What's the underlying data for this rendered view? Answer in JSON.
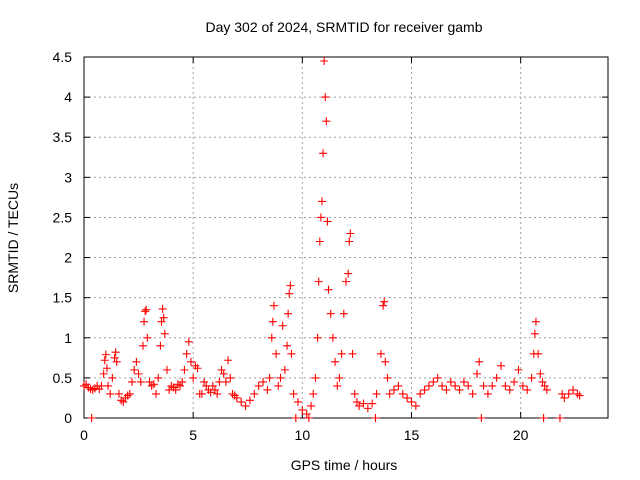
{
  "chart_data": {
    "type": "scatter",
    "title": "Day 302 of 2024, SRMTID for receiver gamb",
    "xlabel": "GPS time / hours",
    "ylabel": "SRMTID / TECUs",
    "xlim": [
      0,
      24
    ],
    "ylim": [
      0,
      4.5
    ],
    "x_ticks": [
      0,
      5,
      10,
      15,
      20
    ],
    "x_tick_labels": [
      "0",
      "5",
      "10",
      "15",
      "20"
    ],
    "y_ticks": [
      0,
      0.5,
      1,
      1.5,
      2,
      2.5,
      3,
      3.5,
      4,
      4.5
    ],
    "y_tick_labels": [
      "0",
      "0.5",
      "1",
      "1.5",
      "2",
      "2.5",
      "3",
      "3.5",
      "4",
      "4.5"
    ],
    "grid": true,
    "marker": "+",
    "color": "#ff0000",
    "series": [
      {
        "name": "SRMTID",
        "points": [
          [
            0.0,
            0.4
          ],
          [
            0.1,
            0.42
          ],
          [
            0.2,
            0.38
          ],
          [
            0.3,
            0.36
          ],
          [
            0.35,
            0.0
          ],
          [
            0.4,
            0.35
          ],
          [
            0.5,
            0.37
          ],
          [
            0.6,
            0.4
          ],
          [
            0.7,
            0.36
          ],
          [
            0.8,
            0.4
          ],
          [
            0.9,
            0.55
          ],
          [
            0.95,
            0.72
          ],
          [
            1.0,
            0.79
          ],
          [
            1.05,
            0.62
          ],
          [
            1.1,
            0.4
          ],
          [
            1.2,
            0.3
          ],
          [
            1.3,
            0.5
          ],
          [
            1.4,
            0.75
          ],
          [
            1.45,
            0.82
          ],
          [
            1.5,
            0.7
          ],
          [
            1.6,
            0.3
          ],
          [
            1.7,
            0.22
          ],
          [
            1.8,
            0.2
          ],
          [
            1.9,
            0.25
          ],
          [
            2.0,
            0.28
          ],
          [
            2.1,
            0.3
          ],
          [
            2.2,
            0.45
          ],
          [
            2.3,
            0.6
          ],
          [
            2.4,
            0.7
          ],
          [
            2.5,
            0.55
          ],
          [
            2.6,
            0.45
          ],
          [
            2.7,
            0.9
          ],
          [
            2.75,
            1.2
          ],
          [
            2.8,
            1.33
          ],
          [
            2.85,
            1.35
          ],
          [
            2.9,
            1.0
          ],
          [
            3.0,
            0.45
          ],
          [
            3.1,
            0.4
          ],
          [
            3.2,
            0.42
          ],
          [
            3.3,
            0.3
          ],
          [
            3.4,
            0.5
          ],
          [
            3.5,
            0.9
          ],
          [
            3.55,
            1.2
          ],
          [
            3.6,
            1.36
          ],
          [
            3.65,
            1.25
          ],
          [
            3.7,
            1.05
          ],
          [
            3.8,
            0.6
          ],
          [
            3.9,
            0.35
          ],
          [
            4.0,
            0.4
          ],
          [
            4.1,
            0.38
          ],
          [
            4.2,
            0.35
          ],
          [
            4.3,
            0.42
          ],
          [
            4.4,
            0.4
          ],
          [
            4.5,
            0.45
          ],
          [
            4.6,
            0.6
          ],
          [
            4.7,
            0.8
          ],
          [
            4.8,
            0.95
          ],
          [
            4.9,
            0.7
          ],
          [
            5.0,
            0.5
          ],
          [
            5.1,
            0.65
          ],
          [
            5.2,
            0.62
          ],
          [
            5.3,
            0.3
          ],
          [
            5.4,
            0.3
          ],
          [
            5.5,
            0.45
          ],
          [
            5.6,
            0.4
          ],
          [
            5.7,
            0.35
          ],
          [
            5.8,
            0.32
          ],
          [
            5.9,
            0.4
          ],
          [
            6.0,
            0.35
          ],
          [
            6.1,
            0.3
          ],
          [
            6.2,
            0.45
          ],
          [
            6.3,
            0.6
          ],
          [
            6.4,
            0.55
          ],
          [
            6.5,
            0.45
          ],
          [
            6.6,
            0.72
          ],
          [
            6.7,
            0.5
          ],
          [
            6.8,
            0.3
          ],
          [
            6.9,
            0.28
          ],
          [
            7.0,
            0.25
          ],
          [
            7.2,
            0.2
          ],
          [
            7.4,
            0.15
          ],
          [
            7.6,
            0.22
          ],
          [
            7.8,
            0.3
          ],
          [
            8.0,
            0.4
          ],
          [
            8.2,
            0.45
          ],
          [
            8.4,
            0.35
          ],
          [
            8.5,
            0.5
          ],
          [
            8.6,
            1.0
          ],
          [
            8.65,
            1.2
          ],
          [
            8.7,
            1.4
          ],
          [
            8.8,
            0.8
          ],
          [
            8.9,
            0.4
          ],
          [
            9.0,
            0.5
          ],
          [
            9.1,
            1.15
          ],
          [
            9.2,
            0.6
          ],
          [
            9.3,
            0.9
          ],
          [
            9.35,
            1.3
          ],
          [
            9.4,
            1.55
          ],
          [
            9.45,
            1.65
          ],
          [
            9.5,
            0.8
          ],
          [
            9.6,
            0.3
          ],
          [
            9.7,
            0.0
          ],
          [
            9.8,
            0.2
          ],
          [
            10.0,
            0.1
          ],
          [
            10.2,
            0.05
          ],
          [
            10.3,
            0.0
          ],
          [
            10.4,
            0.15
          ],
          [
            10.5,
            0.3
          ],
          [
            10.6,
            0.5
          ],
          [
            10.7,
            1.0
          ],
          [
            10.75,
            1.7
          ],
          [
            10.8,
            2.2
          ],
          [
            10.85,
            2.5
          ],
          [
            10.9,
            2.7
          ],
          [
            10.95,
            3.3
          ],
          [
            11.0,
            4.45
          ],
          [
            11.05,
            4.0
          ],
          [
            11.1,
            3.7
          ],
          [
            11.15,
            2.45
          ],
          [
            11.2,
            1.6
          ],
          [
            11.3,
            1.3
          ],
          [
            11.4,
            1.0
          ],
          [
            11.5,
            0.7
          ],
          [
            11.6,
            0.4
          ],
          [
            11.7,
            0.5
          ],
          [
            11.8,
            0.8
          ],
          [
            11.9,
            1.3
          ],
          [
            12.0,
            1.7
          ],
          [
            12.1,
            1.8
          ],
          [
            12.15,
            2.2
          ],
          [
            12.2,
            2.3
          ],
          [
            12.3,
            0.8
          ],
          [
            12.4,
            0.3
          ],
          [
            12.5,
            0.2
          ],
          [
            12.6,
            0.15
          ],
          [
            12.8,
            0.18
          ],
          [
            13.0,
            0.12
          ],
          [
            13.2,
            0.18
          ],
          [
            13.35,
            0.0
          ],
          [
            13.4,
            0.3
          ],
          [
            13.6,
            0.8
          ],
          [
            13.7,
            1.4
          ],
          [
            13.75,
            1.45
          ],
          [
            13.8,
            0.7
          ],
          [
            13.9,
            0.5
          ],
          [
            14.0,
            0.3
          ],
          [
            14.2,
            0.35
          ],
          [
            14.4,
            0.4
          ],
          [
            14.6,
            0.3
          ],
          [
            14.8,
            0.25
          ],
          [
            15.0,
            0.2
          ],
          [
            15.2,
            0.15
          ],
          [
            15.4,
            0.3
          ],
          [
            15.6,
            0.35
          ],
          [
            15.8,
            0.4
          ],
          [
            16.0,
            0.45
          ],
          [
            16.2,
            0.5
          ],
          [
            16.4,
            0.4
          ],
          [
            16.6,
            0.35
          ],
          [
            16.8,
            0.45
          ],
          [
            17.0,
            0.4
          ],
          [
            17.2,
            0.35
          ],
          [
            17.4,
            0.45
          ],
          [
            17.6,
            0.4
          ],
          [
            17.8,
            0.3
          ],
          [
            18.0,
            0.55
          ],
          [
            18.1,
            0.7
          ],
          [
            18.2,
            0.0
          ],
          [
            18.3,
            0.4
          ],
          [
            18.5,
            0.3
          ],
          [
            18.7,
            0.4
          ],
          [
            18.9,
            0.5
          ],
          [
            19.1,
            0.65
          ],
          [
            19.3,
            0.4
          ],
          [
            19.5,
            0.35
          ],
          [
            19.7,
            0.45
          ],
          [
            19.9,
            0.6
          ],
          [
            20.1,
            0.4
          ],
          [
            20.3,
            0.35
          ],
          [
            20.5,
            0.5
          ],
          [
            20.6,
            0.8
          ],
          [
            20.65,
            1.05
          ],
          [
            20.7,
            1.2
          ],
          [
            20.8,
            0.8
          ],
          [
            20.9,
            0.55
          ],
          [
            21.0,
            0.45
          ],
          [
            21.05,
            0.0
          ],
          [
            21.1,
            0.4
          ],
          [
            21.2,
            0.35
          ],
          [
            21.8,
            0.0
          ],
          [
            21.9,
            0.3
          ],
          [
            22.0,
            0.25
          ],
          [
            22.2,
            0.3
          ],
          [
            22.4,
            0.35
          ],
          [
            22.6,
            0.3
          ],
          [
            22.7,
            0.28
          ]
        ]
      }
    ]
  }
}
